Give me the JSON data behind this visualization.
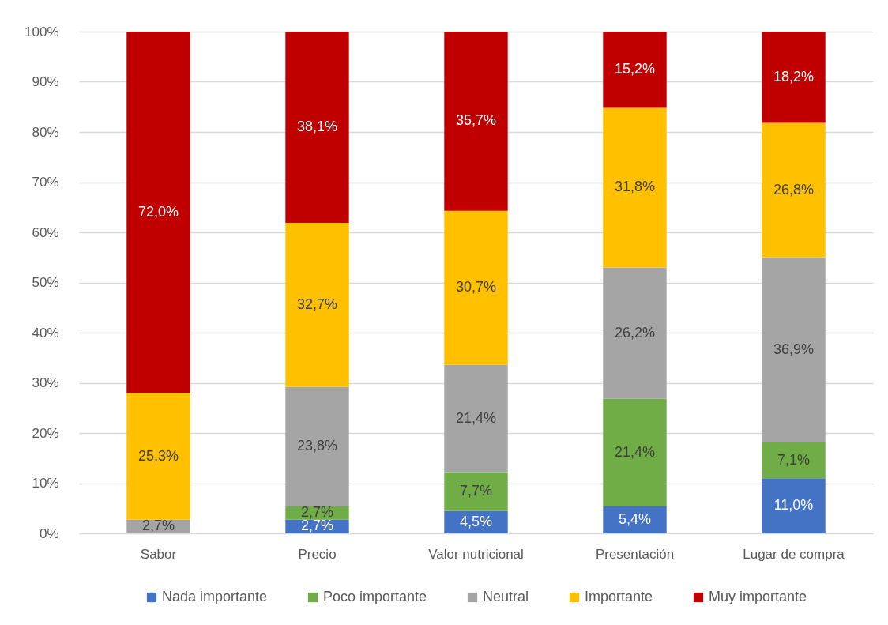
{
  "chart_data": {
    "type": "bar",
    "stacked": true,
    "categories": [
      "Sabor",
      "Precio",
      "Valor nutricional",
      "Presentación",
      "Lugar de compra"
    ],
    "series": [
      {
        "name": "Nada importante",
        "color": "#4472c4",
        "values": [
          null,
          2.7,
          4.5,
          5.4,
          11.0
        ],
        "value_labels": [
          null,
          "2,7%",
          "4,5%",
          "5,4%",
          "11,0%"
        ]
      },
      {
        "name": "Poco importante",
        "color": "#70ad47",
        "values": [
          null,
          2.7,
          7.7,
          21.4,
          7.1
        ],
        "value_labels": [
          null,
          "2,7%",
          "7,7%",
          "21,4%",
          "7,1%"
        ]
      },
      {
        "name": "Neutral",
        "color": "#a5a5a5",
        "values": [
          2.7,
          23.8,
          21.4,
          26.2,
          36.9
        ],
        "value_labels": [
          "2,7%",
          "23,8%",
          "21,4%",
          "26,2%",
          "36,9%"
        ]
      },
      {
        "name": "Importante",
        "color": "#ffc000",
        "values": [
          25.3,
          32.7,
          30.7,
          31.8,
          26.8
        ],
        "value_labels": [
          "25,3%",
          "32,7%",
          "30,7%",
          "31,8%",
          "26,8%"
        ]
      },
      {
        "name": "Muy importante",
        "color": "#c00000",
        "values": [
          72.0,
          38.1,
          35.7,
          15.2,
          18.2
        ],
        "value_labels": [
          "72,0%",
          "38,1%",
          "35,7%",
          "15,2%",
          "18,2%"
        ]
      }
    ],
    "ylim": [
      0,
      100
    ],
    "yticks": [
      {
        "value": 0,
        "label": "0%"
      },
      {
        "value": 10,
        "label": "10%"
      },
      {
        "value": 20,
        "label": "20%"
      },
      {
        "value": 30,
        "label": "30%"
      },
      {
        "value": 40,
        "label": "40%"
      },
      {
        "value": 50,
        "label": "50%"
      },
      {
        "value": 60,
        "label": "60%"
      },
      {
        "value": 70,
        "label": "70%"
      },
      {
        "value": 80,
        "label": "80%"
      },
      {
        "value": 90,
        "label": "90%"
      },
      {
        "value": 100,
        "label": "100%"
      }
    ],
    "grid": "y",
    "legend": "bottom"
  }
}
